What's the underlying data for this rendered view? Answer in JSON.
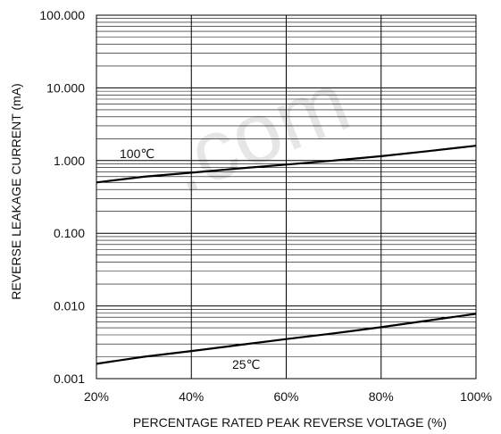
{
  "watermark": {
    "text": ".com",
    "color": "#e6e6e6"
  },
  "chart_data": {
    "type": "line",
    "title": "",
    "xlabel": "PERCENTAGE RATED PEAK REVERSE VOLTAGE (%)",
    "ylabel": "REVERSE LEAKAGE CURRENT (mA)",
    "xlim": [
      20,
      100
    ],
    "ylim": [
      0.001,
      100
    ],
    "yscale": "log",
    "grid": true,
    "x_ticks": [
      20,
      40,
      60,
      80,
      100
    ],
    "x_tick_labels": [
      "20%",
      "40%",
      "60%",
      "80%",
      "100%"
    ],
    "y_ticks": [
      0.001,
      0.01,
      0.1,
      1,
      10,
      100
    ],
    "y_tick_labels": [
      "0.001",
      "0.010",
      "0.100",
      "1.000",
      "10.000",
      "100.000"
    ],
    "series": [
      {
        "name": "100℃",
        "color": "#000000",
        "x": [
          20,
          30,
          40,
          50,
          60,
          70,
          80,
          90,
          100
        ],
        "y": [
          0.5,
          0.6,
          0.68,
          0.78,
          0.88,
          1.0,
          1.15,
          1.35,
          1.6
        ]
      },
      {
        "name": "25℃",
        "color": "#000000",
        "x": [
          20,
          30,
          40,
          50,
          60,
          70,
          80,
          90,
          100
        ],
        "y": [
          0.0016,
          0.002,
          0.0024,
          0.0029,
          0.0035,
          0.0042,
          0.0051,
          0.0063,
          0.0078
        ]
      }
    ]
  }
}
